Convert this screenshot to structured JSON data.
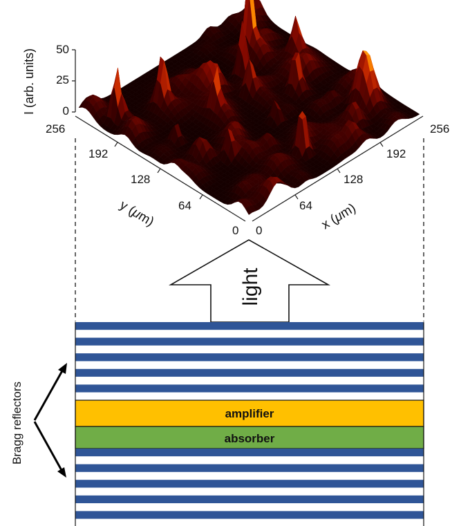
{
  "surface_plot": {
    "z_axis": {
      "label": "I (arb. units)",
      "ticks": [
        "0",
        "25",
        "50"
      ],
      "range": [
        0,
        50
      ]
    },
    "y_axis": {
      "label_prefix": "y (",
      "label_symbol": "μ",
      "label_suffix": "m)",
      "ticks": [
        "0",
        "64",
        "128",
        "192",
        "256"
      ],
      "range": [
        0,
        256
      ]
    },
    "x_axis": {
      "label_prefix": "x (",
      "label_symbol": "μ",
      "label_suffix": "m)",
      "ticks": [
        "0",
        "64",
        "128",
        "192",
        "256"
      ],
      "range": [
        0,
        256
      ]
    },
    "colormap": [
      "#000000",
      "#3a0000",
      "#8a0a00",
      "#d03000",
      "#ff8c00",
      "#ffff80"
    ],
    "peaks": [
      {
        "x": 20,
        "y": 220,
        "height": 38
      },
      {
        "x": 70,
        "y": 200,
        "height": 28
      },
      {
        "x": 100,
        "y": 150,
        "height": 30
      },
      {
        "x": 150,
        "y": 150,
        "height": 25
      },
      {
        "x": 170,
        "y": 180,
        "height": 45
      },
      {
        "x": 200,
        "y": 200,
        "height": 52
      },
      {
        "x": 120,
        "y": 40,
        "height": 40
      },
      {
        "x": 190,
        "y": 120,
        "height": 28
      },
      {
        "x": 60,
        "y": 90,
        "height": 22
      },
      {
        "x": 230,
        "y": 160,
        "height": 24
      },
      {
        "x": 140,
        "y": 100,
        "height": 18
      },
      {
        "x": 40,
        "y": 150,
        "height": 16
      }
    ]
  },
  "arrow": {
    "label": "light"
  },
  "structure": {
    "layers": {
      "amplifier": "amplifier",
      "absorber": "absorber"
    },
    "colors": {
      "mirror_blue": "#2f5597",
      "amplifier": "#ffc000",
      "absorber": "#70ad47"
    },
    "bragg_label": "Bragg reflectors"
  }
}
